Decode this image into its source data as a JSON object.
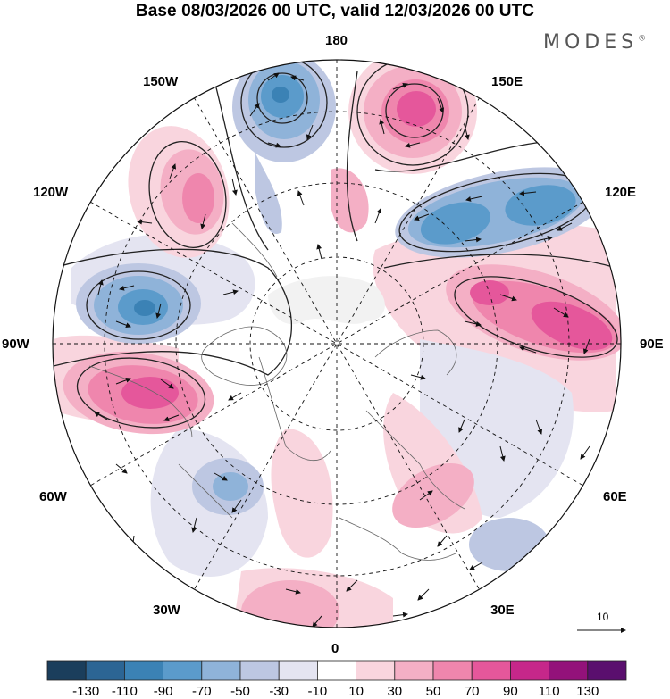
{
  "title": "Base 08/03/2026 00 UTC, valid 12/03/2026 00 UTC",
  "brand": "MODES",
  "brand_mark": "®",
  "longitude_labels": {
    "top": "180",
    "bottom": "0",
    "left": "90W",
    "right": "90E",
    "ul1": "150W",
    "ul2": "120W",
    "ur1": "150E",
    "ur2": "120E",
    "ll1": "60W",
    "ll2": "30W",
    "lr1": "60E",
    "lr2": "30E"
  },
  "vector_reference": "10",
  "colorbar": {
    "colors": [
      "#1b3e5c",
      "#2c6594",
      "#3b82b5",
      "#5b9bcb",
      "#8fb3d9",
      "#bdc7e2",
      "#e4e4f1",
      "#ffffff",
      "#f9d5de",
      "#f4afc5",
      "#ef86ad",
      "#e5579b",
      "#c6278a",
      "#93127a",
      "#5a0f6e"
    ],
    "ticks": [
      "-130",
      "-110",
      "-90",
      "-70",
      "-50",
      "-30",
      "-10",
      "10",
      "30",
      "50",
      "70",
      "90",
      "110",
      "130"
    ]
  },
  "anomaly_centers": [
    {
      "lon_label": "150W-180",
      "sign": "negative",
      "value": -80
    },
    {
      "lon_label": "150E-180",
      "sign": "positive",
      "value": 85
    },
    {
      "lon_label": "120E",
      "sign": "negative",
      "value": -75
    },
    {
      "lon_label": "90E",
      "sign": "positive",
      "value": 90
    },
    {
      "lon_label": "120W-150W",
      "sign": "positive",
      "value": 55
    },
    {
      "lon_label": "90W-120W",
      "sign": "negative",
      "value": -70
    },
    {
      "lon_label": "60W-90W",
      "sign": "positive",
      "value": 85
    },
    {
      "lon_label": "45W",
      "sign": "negative",
      "value": -45
    },
    {
      "lon_label": "0",
      "sign": "positive",
      "value": 40
    },
    {
      "lon_label": "30E-60E",
      "sign": "positive",
      "value": 40
    }
  ]
}
